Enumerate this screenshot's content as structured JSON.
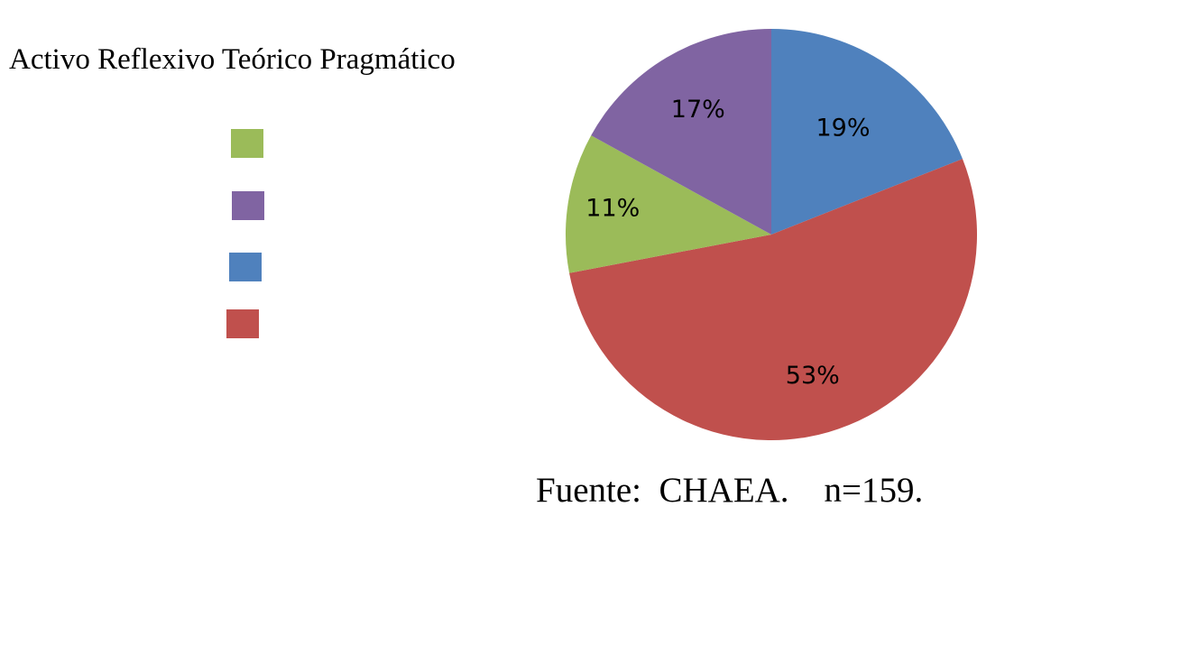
{
  "legend": {
    "text": "Activo Reflexivo Teórico Pragmático"
  },
  "footer": {
    "source_note": "Fuente:  CHAEA.    n=159."
  },
  "chart_data": {
    "type": "pie",
    "slices": [
      {
        "label": "Activo",
        "value": 11,
        "display": "11%",
        "color": "#9BBB59"
      },
      {
        "label": "Reflexivo",
        "value": 17,
        "display": "17%",
        "color": "#8064A2"
      },
      {
        "label": "Teórico",
        "value": 19,
        "display": "19%",
        "color": "#4F81BD"
      },
      {
        "label": "Pragmático",
        "value": 53,
        "display": "53%",
        "color": "#C0504D"
      }
    ],
    "legend_placement": "left"
  }
}
